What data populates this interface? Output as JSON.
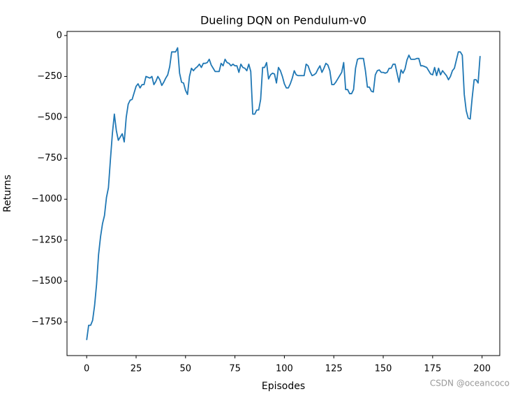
{
  "chart_data": {
    "type": "line",
    "title": "Dueling DQN on Pendulum-v0",
    "x_label": "Episodes",
    "y_label": "Returns",
    "x": [
      0,
      1,
      2,
      3,
      4,
      5,
      6,
      7,
      8,
      9,
      10,
      11,
      12,
      13,
      14,
      15,
      16,
      17,
      18,
      19,
      20,
      21,
      22,
      23,
      24,
      25,
      26,
      27,
      28,
      29,
      30,
      31,
      32,
      33,
      34,
      35,
      36,
      37,
      38,
      39,
      40,
      41,
      42,
      43,
      44,
      45,
      46,
      47,
      48,
      49,
      50,
      51,
      52,
      53,
      54,
      55,
      56,
      57,
      58,
      59,
      60,
      61,
      62,
      63,
      64,
      65,
      66,
      67,
      68,
      69,
      70,
      71,
      72,
      73,
      74,
      75,
      76,
      77,
      78,
      79,
      80,
      81,
      82,
      83,
      84,
      85,
      86,
      87,
      88,
      89,
      90,
      91,
      92,
      93,
      94,
      95,
      96,
      97,
      98,
      99,
      100,
      101,
      102,
      103,
      104,
      105,
      106,
      107,
      108,
      109,
      110,
      111,
      112,
      113,
      114,
      115,
      116,
      117,
      118,
      119,
      120,
      121,
      122,
      123,
      124,
      125,
      126,
      127,
      128,
      129,
      130,
      131,
      132,
      133,
      134,
      135,
      136,
      137,
      138,
      139,
      140,
      141,
      142,
      143,
      144,
      145,
      146,
      147,
      148,
      149,
      150,
      151,
      152,
      153,
      154,
      155,
      156,
      157,
      158,
      159,
      160,
      161,
      162,
      163,
      164,
      165,
      166,
      167,
      168,
      169,
      170,
      171,
      172,
      173,
      174,
      175,
      176,
      177,
      178,
      179,
      180,
      181,
      182,
      183,
      184,
      185,
      186,
      187,
      188,
      189,
      190,
      191,
      192,
      193,
      194,
      195,
      196,
      197,
      198,
      199
    ],
    "series": [
      {
        "name": "Returns",
        "color": "#1f77b4",
        "values": [
          -1860,
          -1770,
          -1770,
          -1740,
          -1650,
          -1520,
          -1340,
          -1230,
          -1150,
          -1100,
          -990,
          -930,
          -760,
          -600,
          -480,
          -580,
          -640,
          -620,
          -600,
          -650,
          -500,
          -420,
          -395,
          -390,
          -350,
          -310,
          -295,
          -320,
          -300,
          -300,
          -250,
          -255,
          -260,
          -250,
          -300,
          -280,
          -250,
          -270,
          -305,
          -285,
          -260,
          -240,
          -190,
          -100,
          -100,
          -100,
          -75,
          -230,
          -285,
          -290,
          -335,
          -360,
          -250,
          -200,
          -215,
          -200,
          -190,
          -175,
          -195,
          -170,
          -170,
          -165,
          -145,
          -180,
          -200,
          -220,
          -220,
          -220,
          -170,
          -185,
          -145,
          -165,
          -170,
          -185,
          -175,
          -185,
          -185,
          -225,
          -175,
          -195,
          -200,
          -215,
          -175,
          -220,
          -480,
          -480,
          -455,
          -455,
          -390,
          -195,
          -195,
          -165,
          -265,
          -240,
          -230,
          -235,
          -290,
          -195,
          -215,
          -250,
          -295,
          -320,
          -320,
          -295,
          -260,
          -215,
          -240,
          -245,
          -245,
          -245,
          -245,
          -175,
          -185,
          -220,
          -245,
          -240,
          -230,
          -205,
          -185,
          -225,
          -200,
          -170,
          -180,
          -215,
          -300,
          -300,
          -285,
          -265,
          -245,
          -225,
          -165,
          -330,
          -330,
          -355,
          -355,
          -330,
          -200,
          -145,
          -140,
          -140,
          -140,
          -215,
          -315,
          -315,
          -340,
          -345,
          -240,
          -215,
          -210,
          -225,
          -225,
          -230,
          -225,
          -200,
          -200,
          -175,
          -175,
          -230,
          -285,
          -210,
          -230,
          -205,
          -150,
          -120,
          -145,
          -145,
          -145,
          -140,
          -140,
          -185,
          -185,
          -190,
          -195,
          -215,
          -235,
          -240,
          -195,
          -245,
          -200,
          -240,
          -215,
          -230,
          -245,
          -270,
          -250,
          -215,
          -200,
          -150,
          -100,
          -100,
          -120,
          -360,
          -460,
          -505,
          -510,
          -380,
          -270,
          -270,
          -290,
          -125
        ]
      }
    ],
    "xlim": [
      -9.95,
      208.95
    ],
    "ylim": [
      -1955,
      25
    ],
    "xticks": [
      0,
      25,
      50,
      75,
      100,
      125,
      150,
      175,
      200
    ],
    "yticks": [
      0,
      {
        "value": -250,
        "label": "−250"
      },
      {
        "value": -500,
        "label": "−500"
      },
      {
        "value": -750,
        "label": "−750"
      },
      {
        "value": -1000,
        "label": "−1000"
      },
      {
        "value": -1250,
        "label": "−1250"
      },
      {
        "value": -1500,
        "label": "−1500"
      },
      {
        "value": -1750,
        "label": "−1750"
      }
    ],
    "grid": false,
    "watermark": "CSDN @oceancoco"
  }
}
